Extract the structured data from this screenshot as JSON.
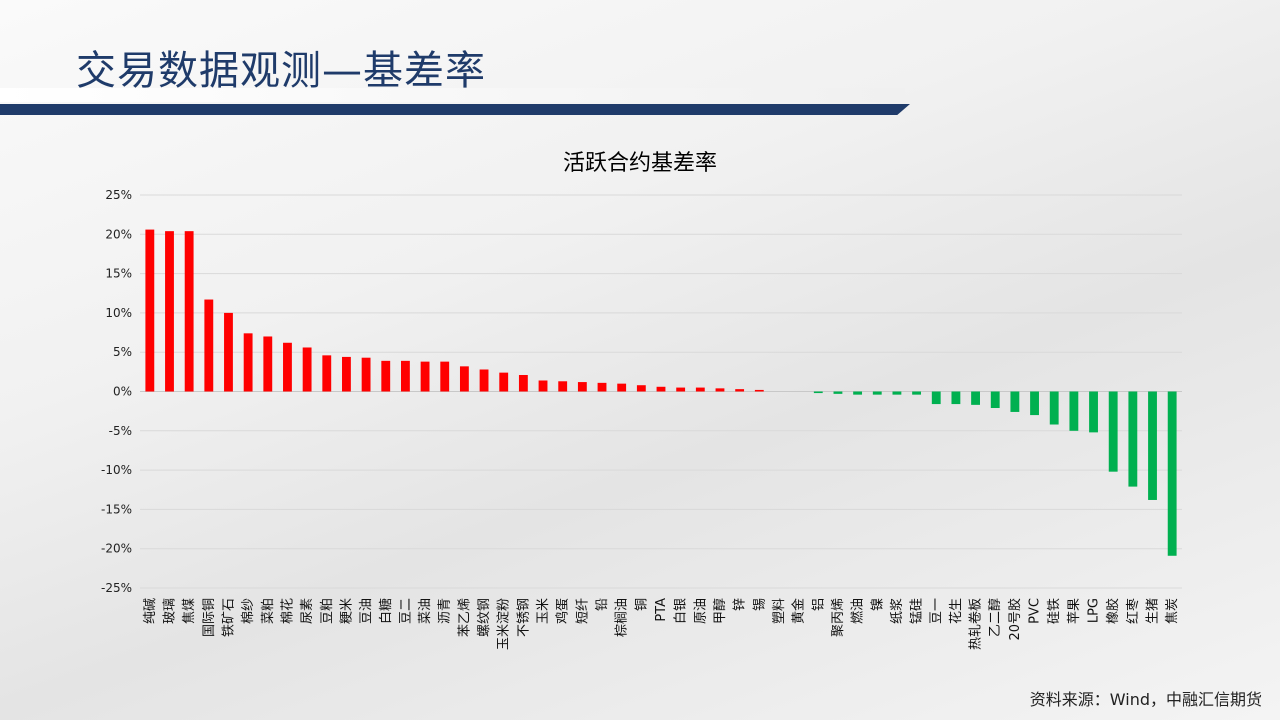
{
  "page": {
    "title": "交易数据观测—基差率",
    "source": "资料来源：Wind，中融汇信期货"
  },
  "colors": {
    "positive": "#ff0000",
    "negative": "#00b050",
    "title": "#1f3b6a"
  },
  "chart_data": {
    "type": "bar",
    "title": "活跃合约基差率",
    "xlabel": "",
    "ylabel": "",
    "ylim": [
      -25,
      25
    ],
    "yticks": [
      "25%",
      "20%",
      "15%",
      "10%",
      "5%",
      "0%",
      "-5%",
      "-10%",
      "-15%",
      "-20%",
      "-25%"
    ],
    "grid": true,
    "categories": [
      "纯碱",
      "玻璃",
      "焦煤",
      "国际铜",
      "铁矿石",
      "棉纱",
      "菜粕",
      "棉花",
      "尿素",
      "豆粕",
      "粳米",
      "豆油",
      "白糖",
      "豆二",
      "菜油",
      "沥青",
      "苯乙烯",
      "螺纹钢",
      "玉米淀粉",
      "不锈钢",
      "玉米",
      "鸡蛋",
      "短纤",
      "铅",
      "棕榈油",
      "铜",
      "PTA",
      "白银",
      "原油",
      "甲醇",
      "锌",
      "锡",
      "塑料",
      "黄金",
      "铝",
      "聚丙烯",
      "燃油",
      "镍",
      "纸浆",
      "锰硅",
      "豆一",
      "花生",
      "热轧卷板",
      "乙二醇",
      "20号胶",
      "PVC",
      "硅铁",
      "苹果",
      "LPG",
      "橡胶",
      "红枣",
      "生猪",
      "焦炭"
    ],
    "values": [
      20.6,
      20.4,
      20.4,
      11.7,
      10.0,
      7.4,
      7.0,
      6.2,
      5.6,
      4.6,
      4.4,
      4.3,
      3.9,
      3.9,
      3.8,
      3.8,
      3.2,
      2.8,
      2.4,
      2.1,
      1.4,
      1.3,
      1.2,
      1.1,
      1.0,
      0.8,
      0.6,
      0.5,
      0.5,
      0.4,
      0.3,
      0.2,
      0.0,
      0.0,
      -0.2,
      -0.3,
      -0.4,
      -0.4,
      -0.4,
      -0.4,
      -1.6,
      -1.6,
      -1.7,
      -2.1,
      -2.6,
      -3.0,
      -4.2,
      -5.0,
      -5.2,
      -10.2,
      -12.1,
      -13.8,
      -20.9
    ]
  }
}
